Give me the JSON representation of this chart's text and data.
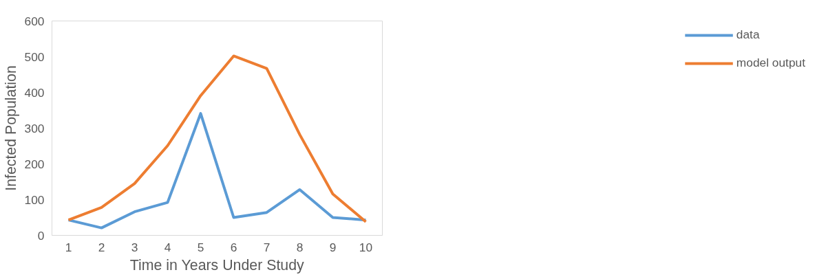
{
  "chart_data": {
    "type": "line",
    "xlabel": "Time in Years Under Study",
    "ylabel": "Infected Population",
    "categories": [
      "1",
      "2",
      "3",
      "4",
      "5",
      "6",
      "7",
      "8",
      "9",
      "10"
    ],
    "series": [
      {
        "name": "data",
        "color": "#5b9bd5",
        "values": [
          43,
          21,
          66,
          92,
          341,
          50,
          64,
          128,
          50,
          43
        ]
      },
      {
        "name": "model output",
        "color": "#ed7d31",
        "values": [
          43,
          78,
          145,
          251,
          391,
          502,
          467,
          282,
          116,
          38
        ]
      }
    ],
    "ylim": [
      0,
      600
    ],
    "yticks": [
      0,
      100,
      200,
      300,
      400,
      500,
      600
    ],
    "grid": false,
    "legend": "right",
    "marker": "none",
    "line_style": "solid"
  }
}
